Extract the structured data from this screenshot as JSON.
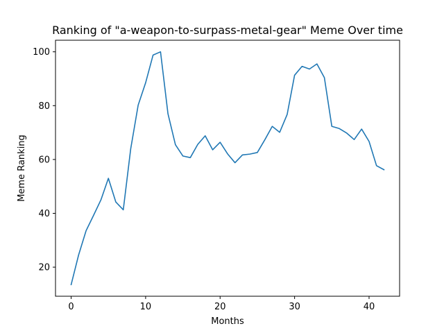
{
  "chart_data": {
    "type": "line",
    "title": "Ranking of \"a-weapon-to-surpass-metal-gear\" Meme Over time",
    "xlabel": "Months",
    "ylabel": "Meme Ranking",
    "xlim": [
      -2.1,
      44.1
    ],
    "ylim": [
      9.2,
      104.3
    ],
    "xticks": [
      0,
      10,
      20,
      30,
      40
    ],
    "yticks": [
      20,
      40,
      60,
      80,
      100
    ],
    "grid": false,
    "color": "#1f77b4",
    "series": [
      {
        "name": "Meme Ranking",
        "x": [
          0,
          1,
          2,
          3,
          4,
          5,
          6,
          7,
          8,
          9,
          10,
          11,
          12,
          13,
          14,
          15,
          16,
          17,
          18,
          19,
          20,
          21,
          22,
          23,
          24,
          25,
          26,
          27,
          28,
          29,
          30,
          31,
          32,
          33,
          34,
          35,
          36,
          37,
          38,
          39,
          40,
          41,
          42
        ],
        "values": [
          13.5,
          24.5,
          33.5,
          39.2,
          45.0,
          53.0,
          44.2,
          41.3,
          64.0,
          80.2,
          88.5,
          98.8,
          100.0,
          77.0,
          65.5,
          61.3,
          60.7,
          65.6,
          68.8,
          63.6,
          66.4,
          62.1,
          58.8,
          61.7,
          62.0,
          62.6,
          67.3,
          72.3,
          70.1,
          76.7,
          91.3,
          94.6,
          93.6,
          95.5,
          90.4,
          72.3,
          71.5,
          69.8,
          67.4,
          71.3,
          66.7,
          57.7,
          56.2
        ]
      }
    ]
  }
}
